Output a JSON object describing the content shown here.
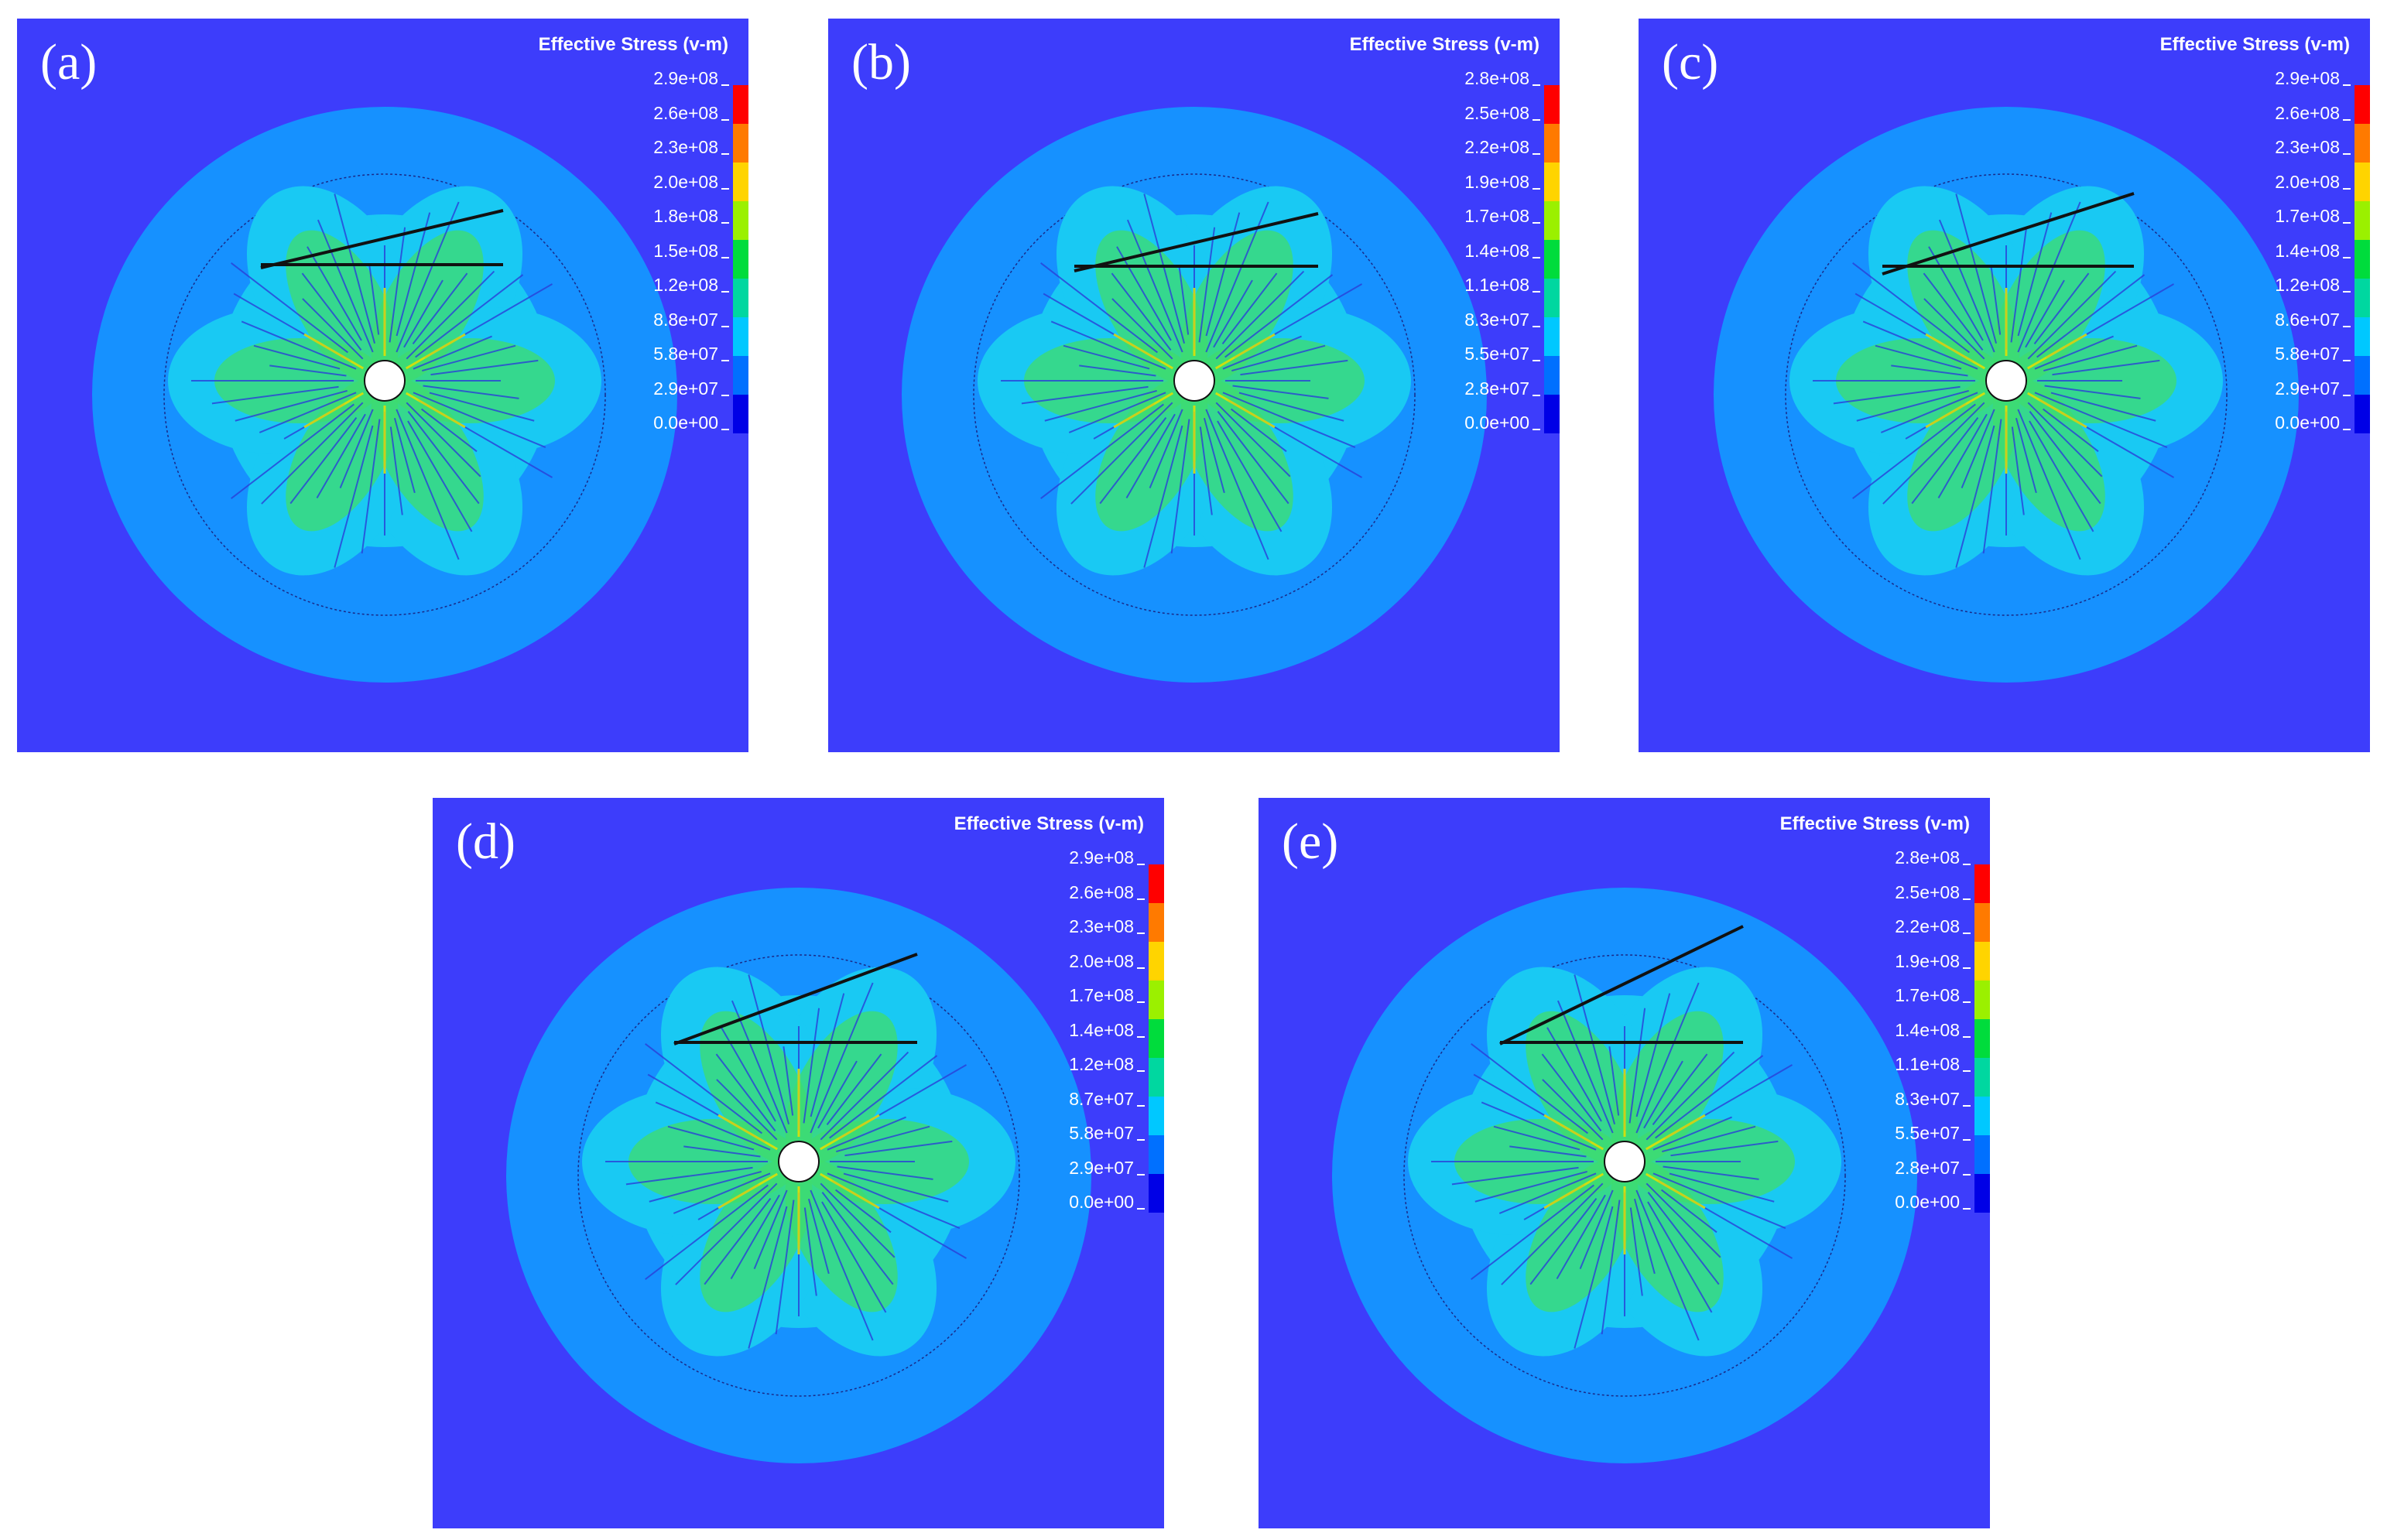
{
  "legend_title": "Effective Stress (v-m)",
  "colorbar_colors": [
    "#ff0000",
    "#ff7a00",
    "#ffd400",
    "#9bf000",
    "#00dc3c",
    "#00d7a0",
    "#00c8ff",
    "#0070ff",
    "#0000e6"
  ],
  "panels": [
    {
      "id": "a",
      "label": "(a)",
      "ticks": [
        "2.9e+08",
        "2.6e+08",
        "2.3e+08",
        "2.0e+08",
        "1.8e+08",
        "1.5e+08",
        "1.2e+08",
        "8.8e+07",
        "5.8e+07",
        "2.9e+07",
        "0.0e+00"
      ]
    },
    {
      "id": "b",
      "label": "(b)",
      "ticks": [
        "2.8e+08",
        "2.5e+08",
        "2.2e+08",
        "1.9e+08",
        "1.7e+08",
        "1.4e+08",
        "1.1e+08",
        "8.3e+07",
        "5.5e+07",
        "2.8e+07",
        "0.0e+00"
      ]
    },
    {
      "id": "c",
      "label": "(c)",
      "ticks": [
        "2.9e+08",
        "2.6e+08",
        "2.3e+08",
        "2.0e+08",
        "1.7e+08",
        "1.4e+08",
        "1.2e+08",
        "8.6e+07",
        "5.8e+07",
        "2.9e+07",
        "0.0e+00"
      ]
    },
    {
      "id": "d",
      "label": "(d)",
      "ticks": [
        "2.9e+08",
        "2.6e+08",
        "2.3e+08",
        "2.0e+08",
        "1.7e+08",
        "1.4e+08",
        "1.2e+08",
        "8.7e+07",
        "5.8e+07",
        "2.9e+07",
        "0.0e+00"
      ]
    },
    {
      "id": "e",
      "label": "(e)",
      "ticks": [
        "2.8e+08",
        "2.5e+08",
        "2.2e+08",
        "1.9e+08",
        "1.7e+08",
        "1.4e+08",
        "1.1e+08",
        "8.3e+07",
        "5.5e+07",
        "2.8e+07",
        "0.0e+00"
      ]
    }
  ]
}
